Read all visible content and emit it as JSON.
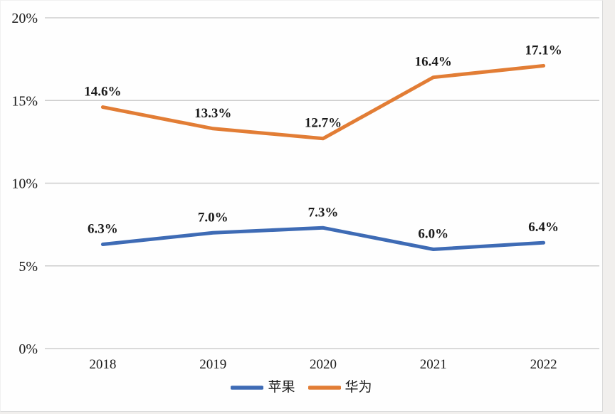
{
  "chart_data": {
    "type": "line",
    "title": "",
    "categories": [
      "2018",
      "2019",
      "2020",
      "2021",
      "2022"
    ],
    "series": [
      {
        "name": "苹果",
        "color": "#3e6bb5",
        "values": [
          6.3,
          7.0,
          7.3,
          6.0,
          6.4
        ],
        "labels": [
          "6.3%",
          "7.0%",
          "7.3%",
          "6.0%",
          "6.4%"
        ]
      },
      {
        "name": "华为",
        "color": "#e27d35",
        "values": [
          14.6,
          13.3,
          12.7,
          16.4,
          17.1
        ],
        "labels": [
          "14.6%",
          "13.3%",
          "12.7%",
          "16.4%",
          "17.1%"
        ]
      }
    ],
    "xlabel": "",
    "ylabel": "",
    "y_axis": {
      "min": 0,
      "max": 20,
      "step": 5,
      "tick_labels": [
        "0%",
        "5%",
        "10%",
        "15%",
        "20%"
      ]
    },
    "grid": true,
    "gridline_color": "#cdcdcd",
    "legend_position": "bottom"
  }
}
